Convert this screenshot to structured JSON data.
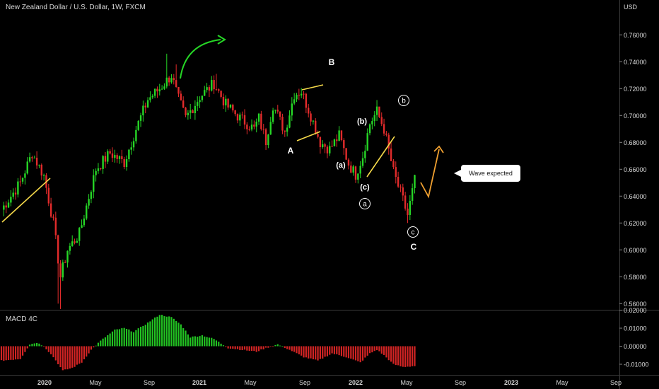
{
  "chart_data": [
    {
      "type": "candlestick",
      "title": "New Zealand Dollar / U.S. Dollar, 1W, FXCM",
      "y_unit": "USD",
      "ylim": [
        0.55,
        0.776
      ],
      "yticks": [
        "0.76000",
        "0.74000",
        "0.72000",
        "0.70000",
        "0.68000",
        "0.66000",
        "0.64000",
        "0.62000",
        "0.60000",
        "0.58000",
        "0.56000"
      ],
      "ytick_values": [
        0.76,
        0.74,
        0.72,
        0.7,
        0.68,
        0.66,
        0.64,
        0.62,
        0.6,
        0.58,
        0.56
      ],
      "xticks": [
        "2020",
        "May",
        "Sep",
        "2021",
        "May",
        "Sep",
        "2022",
        "May",
        "Sep",
        "2023",
        "May",
        "Sep"
      ],
      "key_closes": [
        [
          0,
          0.63
        ],
        [
          8,
          0.65
        ],
        [
          13,
          0.672
        ],
        [
          18,
          0.655
        ],
        [
          22,
          0.62
        ],
        [
          25,
          0.58
        ],
        [
          28,
          0.6
        ],
        [
          33,
          0.612
        ],
        [
          40,
          0.66
        ],
        [
          46,
          0.672
        ],
        [
          52,
          0.665
        ],
        [
          57,
          0.69
        ],
        [
          62,
          0.712
        ],
        [
          67,
          0.72
        ],
        [
          72,
          0.73
        ],
        [
          75,
          0.712
        ],
        [
          78,
          0.698
        ],
        [
          84,
          0.714
        ],
        [
          90,
          0.724
        ],
        [
          95,
          0.708
        ],
        [
          101,
          0.698
        ],
        [
          107,
          0.69
        ],
        [
          109,
          0.698
        ],
        [
          112,
          0.681
        ],
        [
          115,
          0.708
        ],
        [
          118,
          0.696
        ],
        [
          120,
          0.688
        ],
        [
          124,
          0.716
        ],
        [
          127,
          0.718
        ],
        [
          131,
          0.7
        ],
        [
          135,
          0.68
        ],
        [
          139,
          0.675
        ],
        [
          143,
          0.685
        ],
        [
          147,
          0.664
        ],
        [
          150,
          0.656
        ],
        [
          153,
          0.67
        ],
        [
          156,
          0.694
        ],
        [
          159,
          0.703
        ],
        [
          162,
          0.69
        ],
        [
          166,
          0.658
        ],
        [
          170,
          0.637
        ],
        [
          172,
          0.626
        ],
        [
          175,
          0.652
        ]
      ],
      "wave_labels": [
        "B",
        "A",
        "(b)",
        "(a)",
        "(c)",
        "b",
        "a",
        "c",
        "C"
      ],
      "annotation": "Wave expected",
      "colors": {
        "up": "#26d626",
        "down": "#e22b2b",
        "trendline": "#f5d94a",
        "arrow_green": "#26d626",
        "arrow_orange": "#f0a030"
      }
    },
    {
      "type": "bar",
      "title": "MACD 4C",
      "ylim": [
        -0.014,
        0.02
      ],
      "yticks": [
        "0.02000",
        "0.01000",
        "0.00000",
        "-0.01000"
      ],
      "ytick_values": [
        0.02,
        0.01,
        0.0,
        -0.01
      ],
      "key_values": [
        [
          0,
          -0.008
        ],
        [
          8,
          -0.007
        ],
        [
          12,
          0.001
        ],
        [
          15,
          0.002
        ],
        [
          18,
          0.0
        ],
        [
          22,
          -0.006
        ],
        [
          26,
          -0.0135
        ],
        [
          30,
          -0.012
        ],
        [
          34,
          -0.009
        ],
        [
          38,
          -0.002
        ],
        [
          42,
          0.003
        ],
        [
          48,
          0.009
        ],
        [
          52,
          0.01
        ],
        [
          56,
          0.008
        ],
        [
          62,
          0.013
        ],
        [
          67,
          0.0175
        ],
        [
          72,
          0.016
        ],
        [
          76,
          0.012
        ],
        [
          80,
          0.005
        ],
        [
          85,
          0.006
        ],
        [
          90,
          0.004
        ],
        [
          96,
          -0.001
        ],
        [
          102,
          -0.002
        ],
        [
          108,
          -0.003
        ],
        [
          112,
          -0.001
        ],
        [
          117,
          0.001
        ],
        [
          122,
          -0.002
        ],
        [
          128,
          -0.006
        ],
        [
          134,
          -0.008
        ],
        [
          140,
          -0.004
        ],
        [
          146,
          -0.006
        ],
        [
          152,
          -0.009
        ],
        [
          156,
          -0.004
        ],
        [
          159,
          -0.002
        ],
        [
          162,
          -0.005
        ],
        [
          166,
          -0.01
        ],
        [
          170,
          -0.0115
        ],
        [
          175,
          -0.011
        ]
      ],
      "colors": {
        "positive": "#22c322",
        "negative": "#d32424"
      }
    }
  ]
}
